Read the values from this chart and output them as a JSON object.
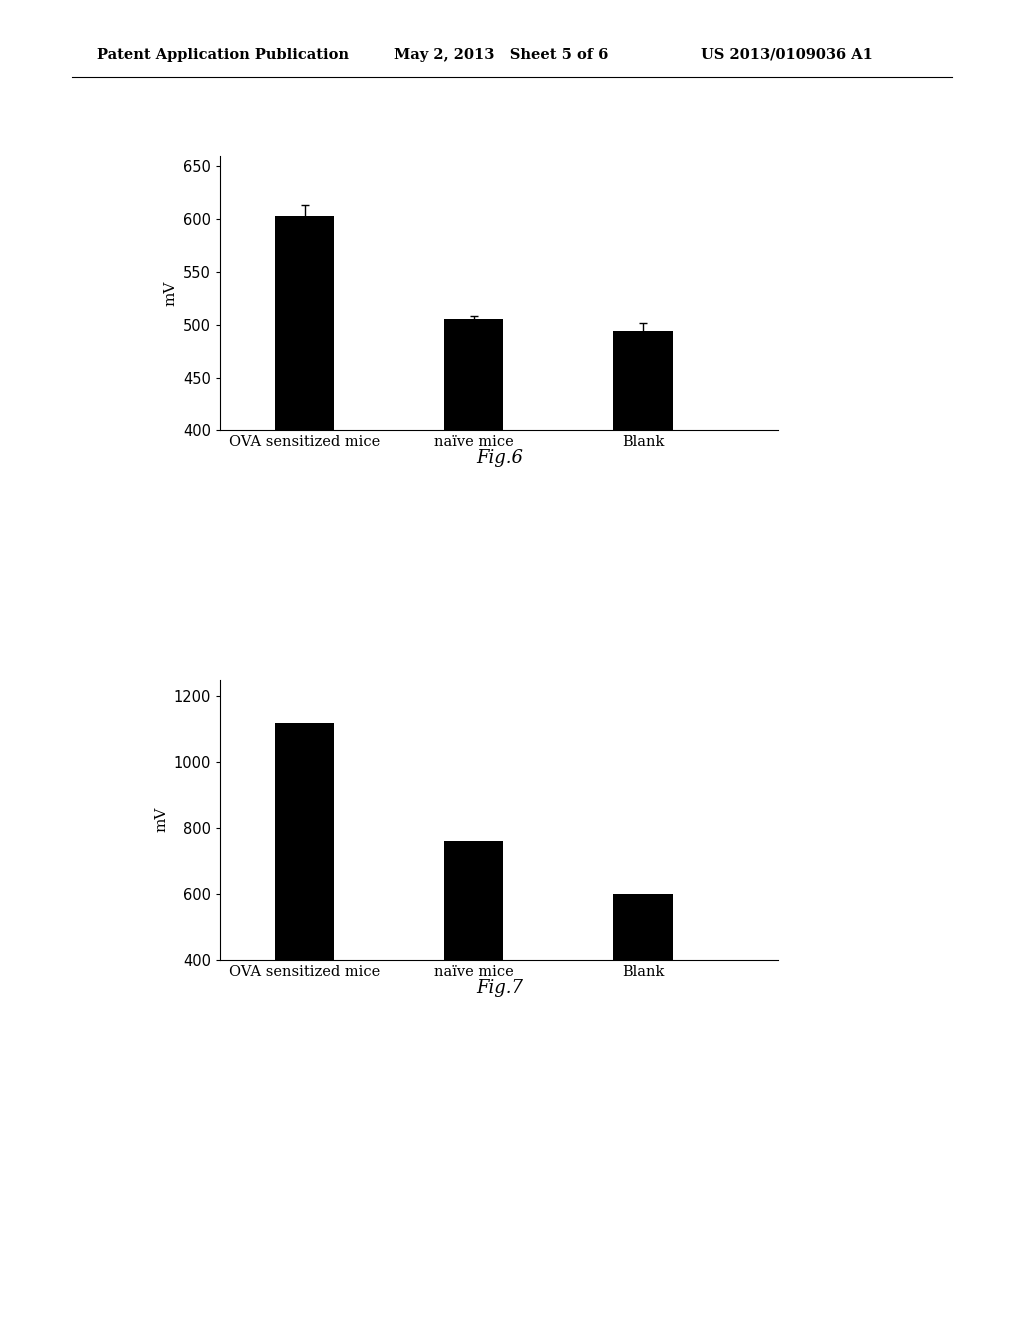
{
  "header_left": "Patent Application Publication",
  "header_mid": "May 2, 2013   Sheet 5 of 6",
  "header_right": "US 2013/0109036 A1",
  "fig6": {
    "categories": [
      "OVA sensitized mice",
      "naïve mice",
      "Blank"
    ],
    "values": [
      603,
      505,
      494
    ],
    "errors": [
      10,
      3,
      8
    ],
    "ylabel": "mV",
    "ylim": [
      400,
      660
    ],
    "yticks": [
      400,
      450,
      500,
      550,
      600,
      650
    ],
    "figname": "Fig.6",
    "bar_color": "#000000",
    "bar_width": 0.35
  },
  "fig7": {
    "categories": [
      "OVA sensitized mice",
      "naïve mice",
      "Blank"
    ],
    "values": [
      1120,
      760,
      600
    ],
    "ylabel": "mV",
    "ylim": [
      400,
      1250
    ],
    "yticks": [
      400,
      600,
      800,
      1000,
      1200
    ],
    "figname": "Fig.7",
    "bar_color": "#000000",
    "bar_width": 0.35
  },
  "background_color": "#ffffff",
  "font_family": "DejaVu Serif",
  "header_fontsize": 10.5,
  "axis_label_fontsize": 11,
  "tick_fontsize": 10.5,
  "figname_fontsize": 13,
  "xlabel_fontsize": 10.5
}
